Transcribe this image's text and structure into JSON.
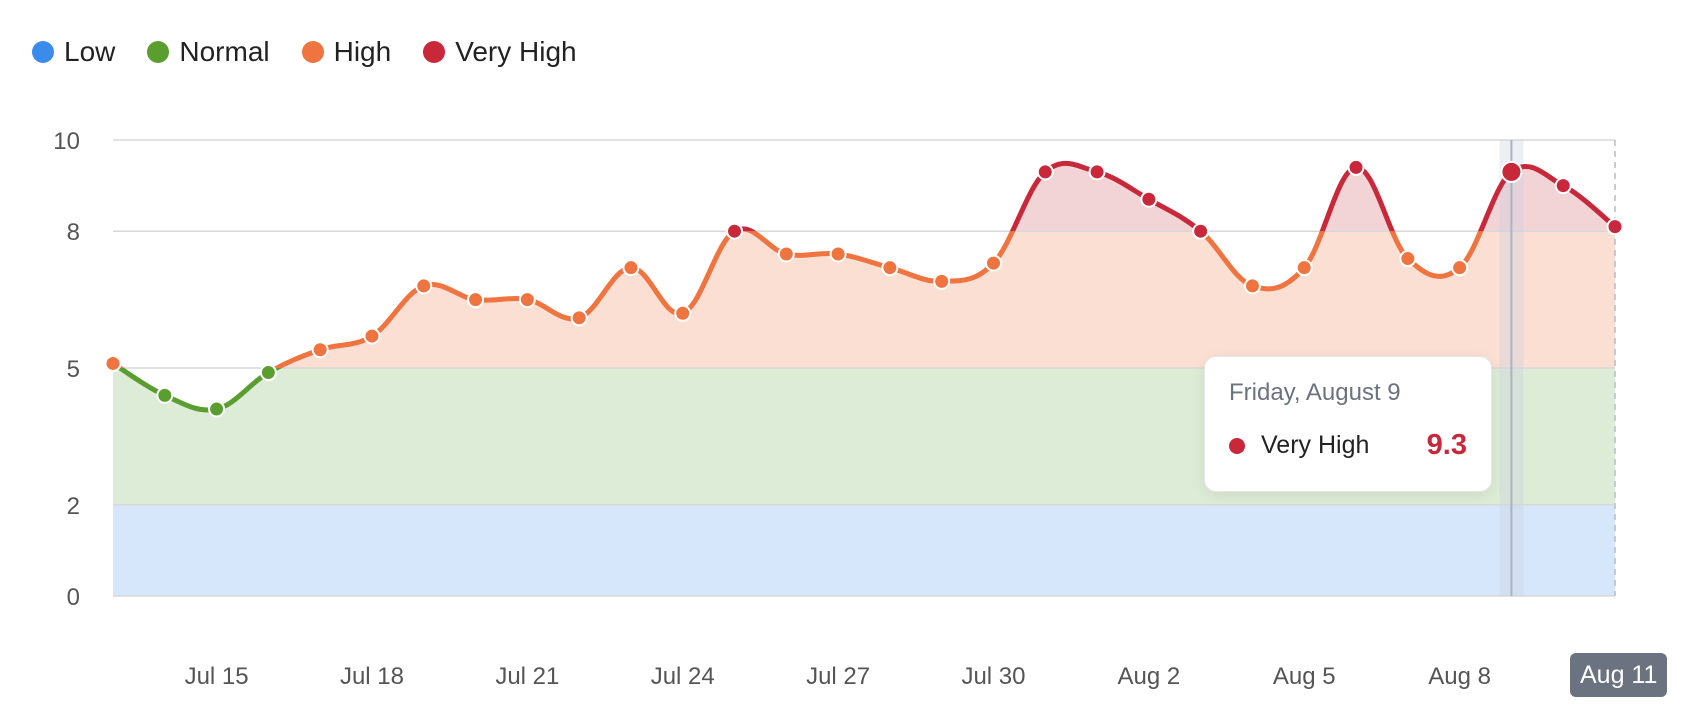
{
  "legend": [
    {
      "label": "Low",
      "color": "#3b8beb"
    },
    {
      "label": "Normal",
      "color": "#5a9e2f"
    },
    {
      "label": "High",
      "color": "#ef7440"
    },
    {
      "label": "Very High",
      "color": "#c8283a"
    }
  ],
  "tooltip": {
    "date": "Friday, August 9",
    "series": "Very High",
    "value": "9.3",
    "color": "#c8283a"
  },
  "x_highlight": "Aug 11",
  "chart_data": {
    "type": "line",
    "ylim": [
      0,
      10
    ],
    "yticks": [
      0,
      2,
      5,
      8,
      10
    ],
    "xticks": [
      {
        "label": "Jul 15",
        "x": 2
      },
      {
        "label": "Jul 18",
        "x": 5
      },
      {
        "label": "Jul 21",
        "x": 8
      },
      {
        "label": "Jul 24",
        "x": 11
      },
      {
        "label": "Jul 27",
        "x": 14
      },
      {
        "label": "Jul 30",
        "x": 17
      },
      {
        "label": "Aug 2",
        "x": 20
      },
      {
        "label": "Aug 5",
        "x": 23
      },
      {
        "label": "Aug 8",
        "x": 26
      }
    ],
    "x_domain": [
      0,
      29
    ],
    "zones": [
      {
        "name": "Low",
        "from": 0,
        "to": 2,
        "color": "#d6e6fb"
      },
      {
        "name": "Normal",
        "from": 2,
        "to": 5,
        "color": "#ddecd6"
      },
      {
        "name": "High",
        "from": 5,
        "to": 8,
        "color": "#fbdfd3"
      },
      {
        "name": "Very High",
        "from": 8,
        "to": 10,
        "color": "#f2d3d6"
      }
    ],
    "line_colors": {
      "Low": "#3b8beb",
      "Normal": "#5a9e2f",
      "High": "#ef7440",
      "Very High": "#c8283a"
    },
    "x": [
      "Jul 13",
      "Jul 14",
      "Jul 15",
      "Jul 16",
      "Jul 17",
      "Jul 18",
      "Jul 19",
      "Jul 20",
      "Jul 21",
      "Jul 22",
      "Jul 23",
      "Jul 24",
      "Jul 25",
      "Jul 26",
      "Jul 27",
      "Jul 28",
      "Jul 29",
      "Jul 30",
      "Jul 31",
      "Aug 1",
      "Aug 2",
      "Aug 3",
      "Aug 4",
      "Aug 5",
      "Aug 6",
      "Aug 7",
      "Aug 8",
      "Aug 9",
      "Aug 10",
      "Aug 11"
    ],
    "values": [
      5.1,
      4.4,
      4.1,
      4.9,
      5.4,
      5.7,
      6.8,
      6.5,
      6.5,
      6.1,
      7.2,
      6.2,
      8.0,
      7.5,
      7.5,
      7.2,
      6.9,
      7.3,
      9.3,
      9.3,
      8.7,
      8.0,
      6.8,
      7.2,
      9.4,
      7.4,
      7.2,
      9.3,
      9.0,
      8.1
    ],
    "highlight_index": 27
  }
}
